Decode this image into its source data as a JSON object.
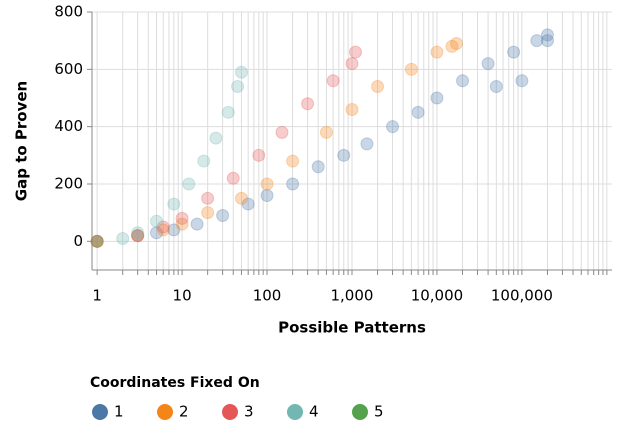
{
  "chart_data": {
    "type": "scatter",
    "x_label": "Possible Patterns",
    "y_label": "Gap to Proven",
    "xscale": "log",
    "xlim": [
      0.87,
      1150000
    ],
    "ylim": [
      -100,
      800
    ],
    "xticks": [
      1,
      10,
      100,
      {
        "value": 1000,
        "label": "1,000"
      },
      {
        "value": 10000,
        "label": "10,000"
      },
      {
        "value": 100000,
        "label": "100,000"
      }
    ],
    "xminorticks": [
      2,
      3,
      4,
      5,
      6,
      7,
      8,
      9,
      20,
      30,
      40,
      50,
      60,
      70,
      80,
      90,
      200,
      300,
      400,
      500,
      600,
      700,
      800,
      900,
      2000,
      3000,
      4000,
      5000,
      6000,
      7000,
      8000,
      9000,
      20000,
      30000,
      40000,
      50000,
      60000,
      70000,
      80000,
      90000,
      200000,
      300000,
      400000,
      500000,
      600000,
      700000,
      800000,
      900000,
      1000000
    ],
    "yticks": [
      0,
      200,
      400,
      600,
      800
    ],
    "grid": true,
    "legend_title": "Coordinates Fixed On",
    "legend_position": "bottom",
    "series": [
      {
        "name": "1",
        "color": "#4c78a8",
        "x": [
          1,
          3,
          5,
          8,
          15,
          30,
          60,
          100,
          200,
          400,
          800,
          1500,
          3000,
          6000,
          10000,
          20000,
          40000,
          50000,
          80000,
          100000,
          150000,
          200000,
          200000
        ],
        "values": [
          0,
          20,
          30,
          40,
          60,
          90,
          130,
          160,
          200,
          260,
          300,
          340,
          400,
          450,
          500,
          560,
          620,
          540,
          660,
          560,
          700,
          720,
          700
        ]
      },
      {
        "name": "2",
        "color": "#f58518",
        "x": [
          1,
          3,
          6,
          10,
          20,
          50,
          100,
          200,
          500,
          1000,
          2000,
          5000,
          10000,
          15000,
          17000
        ],
        "values": [
          0,
          20,
          40,
          60,
          100,
          150,
          200,
          280,
          380,
          460,
          540,
          600,
          660,
          680,
          690
        ]
      },
      {
        "name": "3",
        "color": "#e45756",
        "x": [
          1,
          3,
          6,
          10,
          20,
          40,
          80,
          150,
          300,
          600,
          1000,
          1100
        ],
        "values": [
          0,
          20,
          50,
          80,
          150,
          220,
          300,
          380,
          480,
          560,
          620,
          660
        ]
      },
      {
        "name": "4",
        "color": "#72b7b2",
        "x": [
          2,
          3,
          5,
          8,
          12,
          18,
          25,
          35,
          45,
          50
        ],
        "values": [
          10,
          30,
          70,
          130,
          200,
          280,
          360,
          450,
          540,
          590
        ]
      },
      {
        "name": "5",
        "color": "#54a24b",
        "x": [
          1
        ],
        "values": [
          0
        ]
      }
    ]
  }
}
